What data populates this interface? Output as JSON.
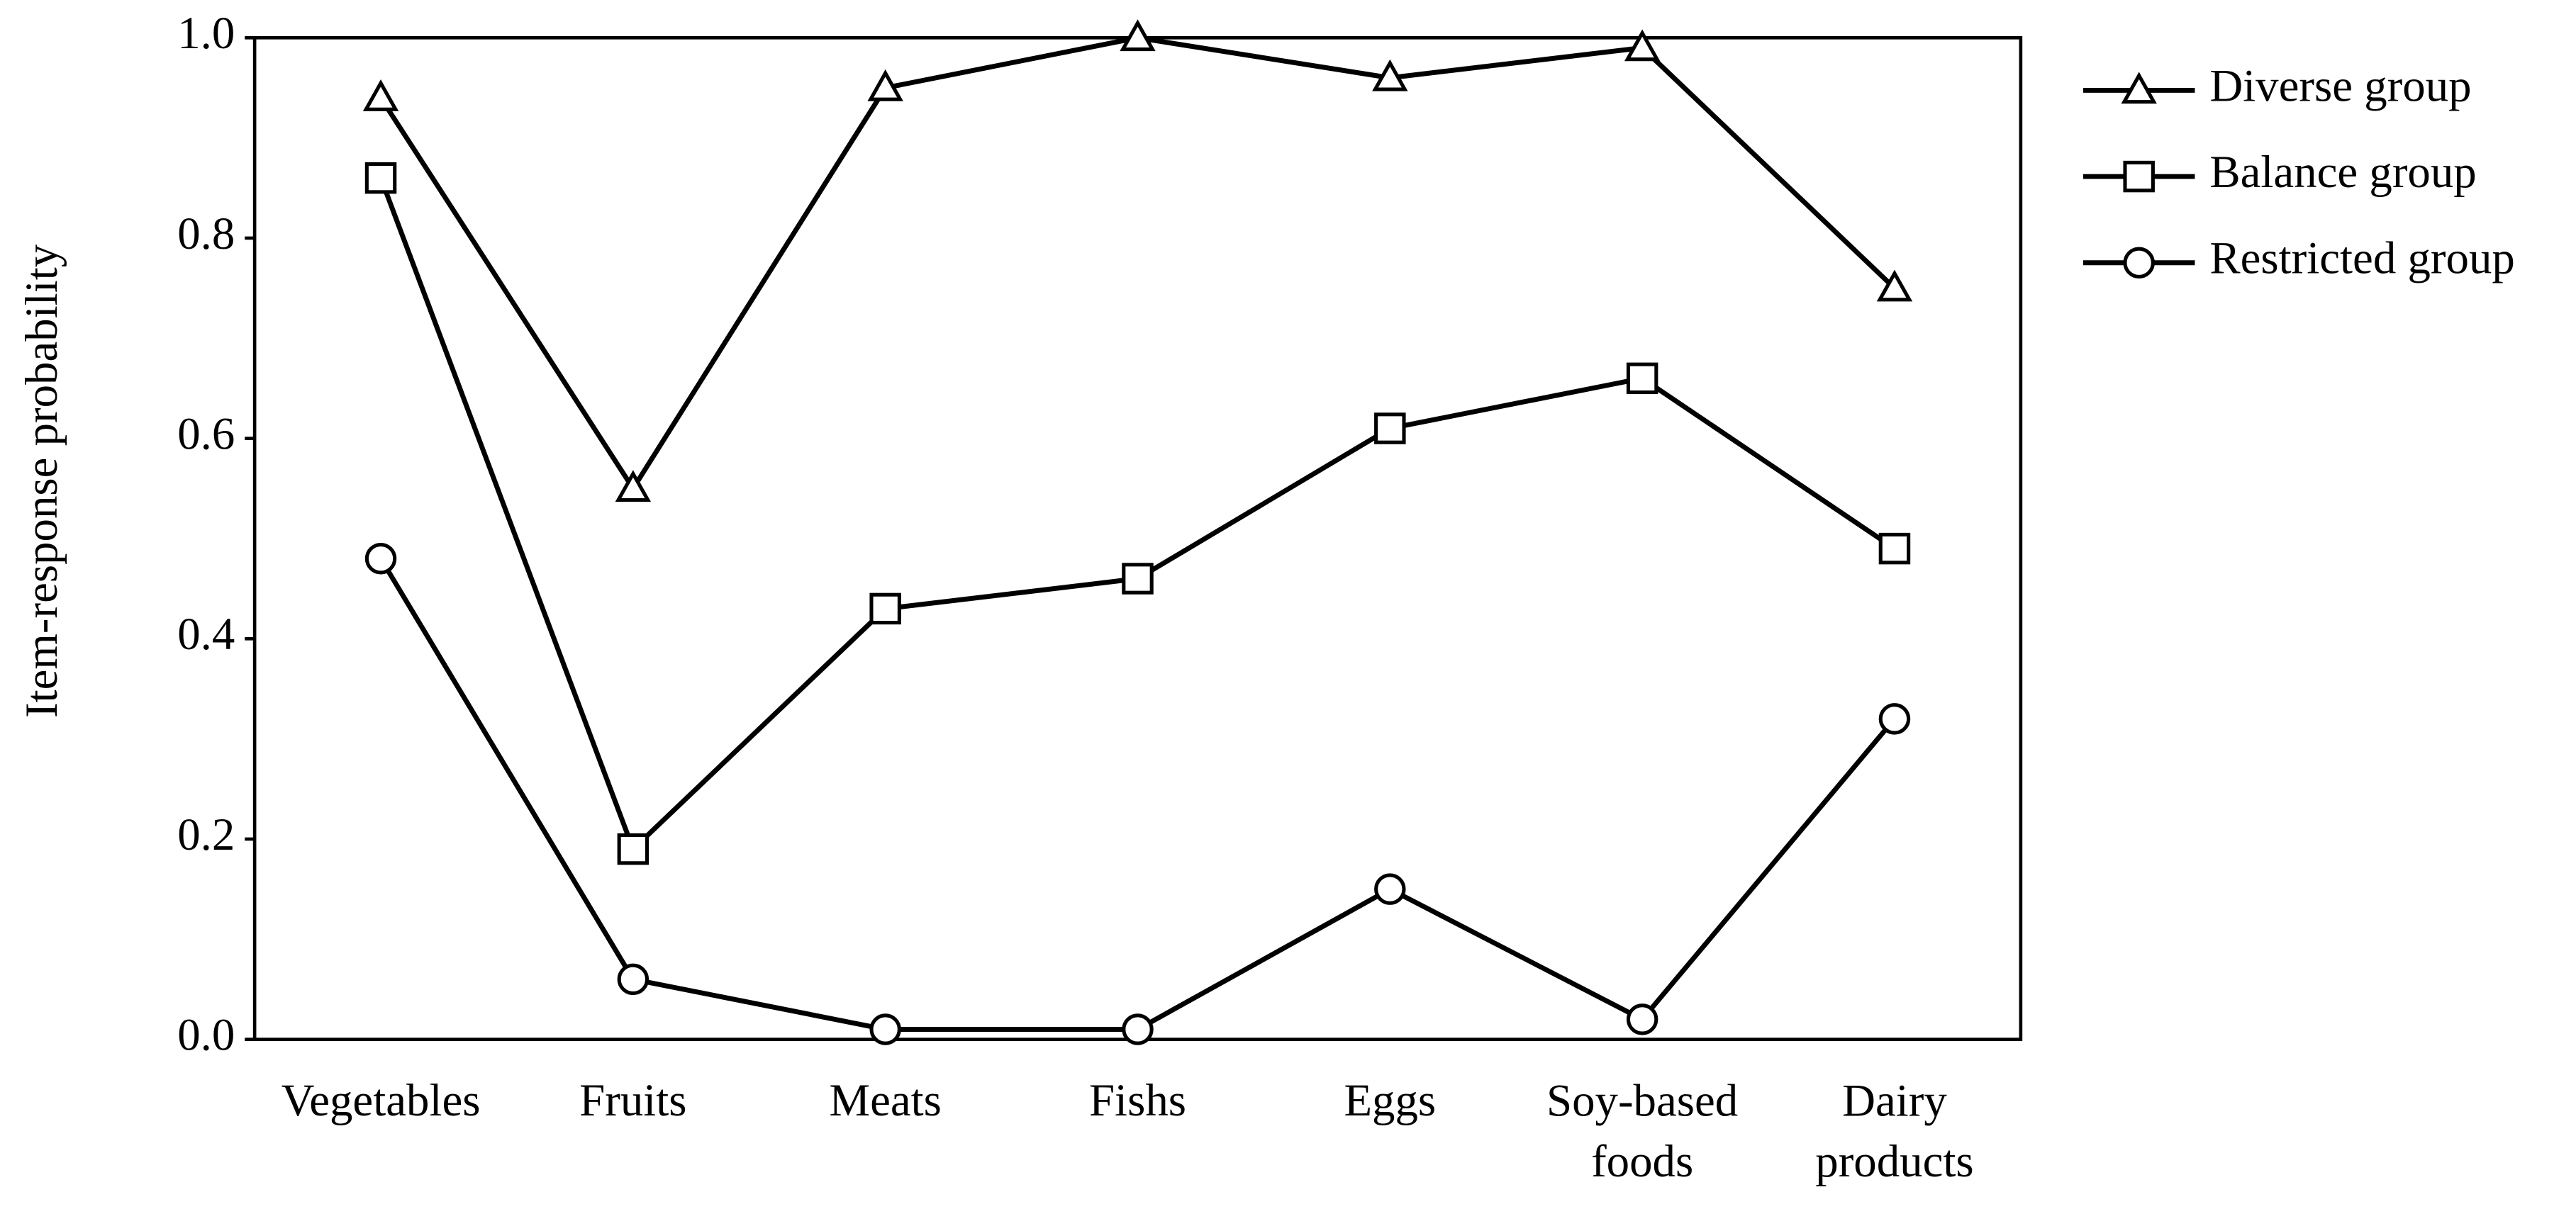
{
  "chart_data": {
    "type": "line",
    "y_label": "Item-response probability",
    "categories": [
      "Vegetables",
      "Fruits",
      "Meats",
      "Fishs",
      "Eggs",
      "Soy-based foods",
      "Dairy products"
    ],
    "series": [
      {
        "name": "Diverse group",
        "color": "#000000",
        "marker": "triangle",
        "values": [
          0.94,
          0.55,
          0.95,
          1.0,
          0.96,
          0.99,
          0.75
        ]
      },
      {
        "name": "Balance group",
        "color": "#000000",
        "marker": "square",
        "values": [
          0.86,
          0.19,
          0.43,
          0.46,
          0.61,
          0.66,
          0.49
        ]
      },
      {
        "name": "Restricted group",
        "color": "#000000",
        "marker": "circle",
        "values": [
          0.48,
          0.06,
          0.01,
          0.01,
          0.15,
          0.02,
          0.32
        ]
      }
    ],
    "ylim": [
      0,
      1
    ],
    "yticks": [
      {
        "value": 0,
        "label": "0.0"
      },
      0.2,
      0.4,
      0.6,
      0.8,
      {
        "value": 1,
        "label": "1.0"
      }
    ],
    "legend": "right"
  }
}
